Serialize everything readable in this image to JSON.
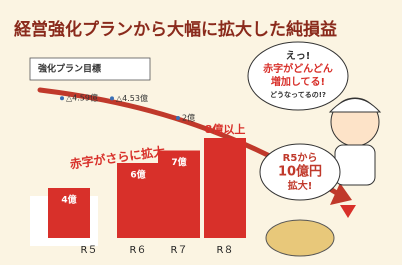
{
  "chart_data": {
    "type": "bar",
    "title": "経営強化プランから大幅に拡大した純損益",
    "categories": [
      "R５",
      "R６",
      "R７",
      "R８"
    ],
    "values": [
      4,
      6,
      7,
      8
    ],
    "value_labels": [
      "4億",
      "6億",
      "7億",
      "8億以上"
    ],
    "color": "#d8302a",
    "plan": {
      "name": "強化プラン目標",
      "values": [
        -4.59,
        -4.53,
        2,
        null
      ],
      "value_labels": [
        "△4.59億",
        "△4.53億",
        "2億",
        null
      ],
      "color": "#3a6fb5"
    },
    "trend_label": "赤字がさらに拡大",
    "bubble": [
      "えっ!",
      "赤字がどんどん",
      "増加してる!",
      "どうなってるの!?"
    ],
    "callout": [
      "R5から",
      "10億円",
      "拡大!"
    ]
  }
}
